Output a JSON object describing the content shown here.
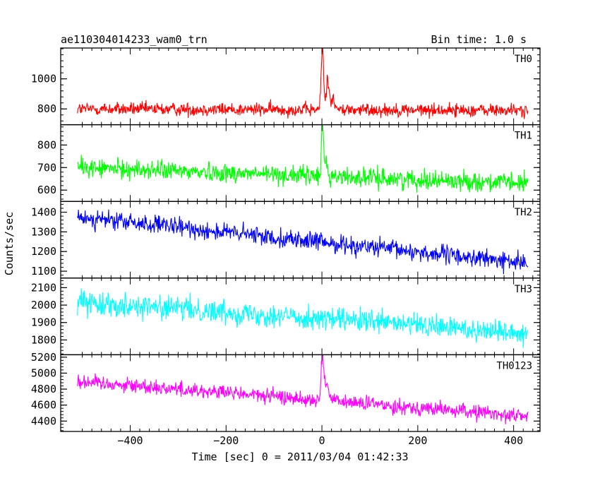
{
  "header": {
    "title": "ae110304014233_wam0_trn",
    "bin_time": "Bin time: 1.0 s"
  },
  "chart_data": {
    "type": "line",
    "title": "ae110304014233_wam0_trn",
    "xlabel": "Time [sec] 0 = 2011/03/04 01:42:33",
    "ylabel": "Counts/sec",
    "xlim": [
      -545,
      455
    ],
    "x_data_range": [
      -510,
      430
    ],
    "x_step": 1.0,
    "x_ticks": [
      -400,
      -200,
      0,
      200,
      400
    ],
    "x_tick_labels": [
      "−400",
      "−200",
      "0",
      "200",
      "400"
    ],
    "grid": false,
    "panels": [
      {
        "name": "TH0",
        "color": "#ff0000",
        "ylim": [
          695,
          1205
        ],
        "yticks": [
          800,
          1000
        ],
        "ytick_labels": [
          "800",
          "1000"
        ],
        "baseline_start": 800,
        "baseline_end": 790,
        "noise": 40,
        "peaks": [
          [
            1,
            1210,
            2.5
          ],
          [
            12,
            990,
            3
          ],
          [
            22,
            870,
            4
          ]
        ]
      },
      {
        "name": "TH1",
        "color": "#00ff00",
        "ylim": [
          550,
          890
        ],
        "yticks": [
          600,
          700,
          800
        ],
        "ytick_labels": [
          "600",
          "700",
          "800"
        ],
        "baseline_start": 700,
        "baseline_end": 630,
        "noise": 38,
        "peaks": [
          [
            1,
            890,
            2
          ],
          [
            8,
            740,
            3
          ]
        ]
      },
      {
        "name": "TH2",
        "color": "#0000ff",
        "ylim": [
          1065,
          1455
        ],
        "yticks": [
          1100,
          1200,
          1300,
          1400
        ],
        "ytick_labels": [
          "1100",
          "1200",
          "1300",
          "1400"
        ],
        "baseline_start": 1375,
        "baseline_end": 1140,
        "noise": 42,
        "peaks": []
      },
      {
        "name": "TH3",
        "color": "#00ffff",
        "ylim": [
          1715,
          2155
        ],
        "yticks": [
          1800,
          1900,
          2000,
          2100
        ],
        "ytick_labels": [
          "1800",
          "1900",
          "2000",
          "2100"
        ],
        "baseline_start": 2020,
        "baseline_end": 1840,
        "noise": 60,
        "peaks": []
      },
      {
        "name": "TH0123",
        "color": "#ff00ff",
        "ylim": [
          4270,
          5230
        ],
        "yticks": [
          4400,
          4600,
          4800,
          5000,
          5200
        ],
        "ytick_labels": [
          "4400",
          "4600",
          "4800",
          "5000",
          "5200"
        ],
        "baseline_start": 4900,
        "baseline_end": 4460,
        "noise": 85,
        "peaks": [
          [
            1,
            5230,
            2.5
          ],
          [
            10,
            4900,
            4
          ]
        ]
      }
    ]
  }
}
